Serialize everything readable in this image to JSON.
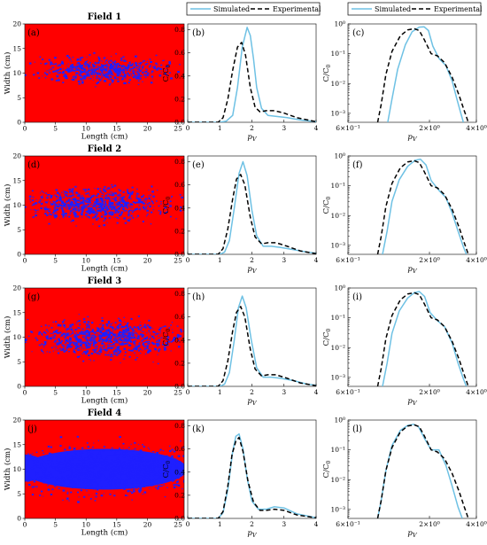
{
  "colors": {
    "field_bg": "#ff0000",
    "plume": "#1f1fff",
    "simulated": "#6ec1e4",
    "experimental": "#000000"
  },
  "legend": {
    "simulated": "Simulated",
    "experimental": "Experimental"
  },
  "chart_data": [
    {
      "type": "heatmap",
      "row": 0,
      "col": 0,
      "panel_label": "(a)",
      "title": "Field 1",
      "xlabel": "Length (cm)",
      "ylabel": "Width (cm)",
      "xlim": [
        0,
        26
      ],
      "ylim": [
        0,
        20
      ],
      "xticks": [
        0,
        5,
        10,
        15,
        20,
        25
      ],
      "yticks": [
        0,
        5,
        10,
        15,
        20
      ],
      "plume": {
        "center": [
          12.5,
          10.8
        ],
        "half_width": [
          8.5,
          2.3
        ],
        "density": 0.35,
        "seed": 11
      },
      "colors": {
        "background": "red",
        "plume": "blue"
      }
    },
    {
      "type": "heatmap",
      "row": 1,
      "col": 0,
      "panel_label": "(d)",
      "title": "Field 2",
      "xlabel": "Length (cm)",
      "ylabel": "Width (cm)",
      "xlim": [
        0,
        26
      ],
      "ylim": [
        0,
        20
      ],
      "xticks": [
        0,
        5,
        10,
        15,
        20,
        25
      ],
      "yticks": [
        0,
        5,
        10,
        15,
        20
      ],
      "plume": {
        "center": [
          12.0,
          10.2
        ],
        "half_width": [
          9.5,
          3.2
        ],
        "density": 0.55,
        "seed": 23
      },
      "colors": {
        "background": "red",
        "plume": "blue"
      }
    },
    {
      "type": "heatmap",
      "row": 2,
      "col": 0,
      "panel_label": "(g)",
      "title": "Field 3",
      "xlabel": "Length (cm)",
      "ylabel": "Width (cm)",
      "xlim": [
        0,
        26
      ],
      "ylim": [
        0,
        20
      ],
      "xticks": [
        0,
        5,
        10,
        15,
        20,
        25
      ],
      "yticks": [
        0,
        5,
        10,
        15,
        20
      ],
      "plume": {
        "center": [
          13.0,
          9.8
        ],
        "half_width": [
          10.5,
          3.6
        ],
        "density": 0.65,
        "seed": 37
      },
      "colors": {
        "background": "red",
        "plume": "blue"
      }
    },
    {
      "type": "heatmap",
      "row": 3,
      "col": 0,
      "panel_label": "(j)",
      "title": "Field 4",
      "xlabel": "Length (cm)",
      "ylabel": "Width (cm)",
      "xlim": [
        0,
        26
      ],
      "ylim": [
        0,
        20
      ],
      "xticks": [
        0,
        5,
        10,
        15,
        20,
        25
      ],
      "yticks": [
        0,
        5,
        10,
        15,
        20
      ],
      "plume": {
        "center": [
          13.0,
          10.0
        ],
        "half_width": [
          14.5,
          4.6
        ],
        "density": 1.0,
        "seed": 41
      },
      "colors": {
        "background": "red",
        "plume": "blue"
      }
    },
    {
      "type": "line",
      "row": 0,
      "col": 1,
      "panel_label": "(b)",
      "xlabel": "p_V",
      "ylabel": "C/C0",
      "xlim": [
        0,
        4
      ],
      "ylim": [
        0,
        0.85
      ],
      "yscale": "linear",
      "xticks": [
        0,
        1,
        2,
        3,
        4
      ],
      "xtick_labels": [
        "0",
        "1",
        "2",
        "3",
        "4"
      ],
      "yticks": [
        0,
        0.2,
        0.4,
        0.6,
        0.8
      ],
      "ytick_labels": [
        "0.0",
        "0.2",
        "0.4",
        "0.6",
        "0.8"
      ],
      "legend": "top",
      "series": [
        {
          "name": "Simulated",
          "x": [
            0,
            1.0,
            1.2,
            1.4,
            1.55,
            1.7,
            1.85,
            1.95,
            2.05,
            2.15,
            2.3,
            2.5,
            2.8,
            3.1,
            3.5,
            4.0
          ],
          "y": [
            0,
            0,
            0.01,
            0.06,
            0.3,
            0.65,
            0.82,
            0.75,
            0.55,
            0.3,
            0.12,
            0.06,
            0.05,
            0.04,
            0.02,
            0.005
          ]
        },
        {
          "name": "Experimental",
          "x": [
            0,
            0.95,
            1.1,
            1.25,
            1.4,
            1.55,
            1.68,
            1.8,
            1.95,
            2.1,
            2.25,
            2.45,
            2.7,
            3.0,
            3.4,
            4.0
          ],
          "y": [
            0,
            0,
            0.04,
            0.2,
            0.45,
            0.65,
            0.69,
            0.58,
            0.3,
            0.13,
            0.09,
            0.1,
            0.1,
            0.08,
            0.04,
            0.005
          ]
        }
      ]
    },
    {
      "type": "line",
      "row": 1,
      "col": 1,
      "panel_label": "(e)",
      "xlabel": "p_V",
      "ylabel": "C/C0",
      "xlim": [
        0,
        4
      ],
      "ylim": [
        0,
        0.85
      ],
      "yscale": "linear",
      "xticks": [
        0,
        1,
        2,
        3,
        4
      ],
      "xtick_labels": [
        "0",
        "1",
        "2",
        "3",
        "4"
      ],
      "yticks": [
        0,
        0.2,
        0.4,
        0.6,
        0.8
      ],
      "ytick_labels": [
        "0.0",
        "0.2",
        "0.4",
        "0.6",
        "0.8"
      ],
      "series": [
        {
          "name": "Simulated",
          "x": [
            0,
            1.0,
            1.15,
            1.3,
            1.45,
            1.6,
            1.72,
            1.85,
            2.0,
            2.15,
            2.35,
            2.6,
            2.9,
            3.3,
            3.7,
            4.0
          ],
          "y": [
            0,
            0,
            0.02,
            0.12,
            0.4,
            0.7,
            0.8,
            0.68,
            0.38,
            0.16,
            0.07,
            0.07,
            0.06,
            0.04,
            0.02,
            0.01
          ]
        },
        {
          "name": "Experimental",
          "x": [
            0,
            0.95,
            1.1,
            1.25,
            1.4,
            1.52,
            1.65,
            1.78,
            1.95,
            2.1,
            2.3,
            2.5,
            2.75,
            3.1,
            3.5,
            4.0
          ],
          "y": [
            0,
            0,
            0.05,
            0.22,
            0.48,
            0.65,
            0.69,
            0.6,
            0.32,
            0.15,
            0.09,
            0.1,
            0.1,
            0.07,
            0.03,
            0.005
          ]
        }
      ]
    },
    {
      "type": "line",
      "row": 2,
      "col": 1,
      "panel_label": "(h)",
      "xlabel": "p_V",
      "ylabel": "C/C0",
      "xlim": [
        0,
        4
      ],
      "ylim": [
        0,
        0.85
      ],
      "yscale": "linear",
      "xticks": [
        0,
        1,
        2,
        3,
        4
      ],
      "xtick_labels": [
        "0",
        "1",
        "2",
        "3",
        "4"
      ],
      "yticks": [
        0,
        0.2,
        0.4,
        0.6,
        0.8
      ],
      "ytick_labels": [
        "0.0",
        "0.2",
        "0.4",
        "0.6",
        "0.8"
      ],
      "series": [
        {
          "name": "Simulated",
          "x": [
            0,
            1.0,
            1.15,
            1.3,
            1.45,
            1.58,
            1.7,
            1.82,
            1.98,
            2.15,
            2.35,
            2.6,
            2.9,
            3.3,
            3.7,
            4.0
          ],
          "y": [
            0,
            0,
            0.02,
            0.12,
            0.4,
            0.68,
            0.78,
            0.68,
            0.4,
            0.16,
            0.08,
            0.08,
            0.07,
            0.05,
            0.02,
            0.01
          ]
        },
        {
          "name": "Experimental",
          "x": [
            0,
            0.95,
            1.1,
            1.25,
            1.4,
            1.52,
            1.65,
            1.78,
            1.95,
            2.1,
            2.3,
            2.5,
            2.75,
            3.1,
            3.5,
            4.0
          ],
          "y": [
            0,
            0,
            0.05,
            0.22,
            0.48,
            0.64,
            0.69,
            0.6,
            0.32,
            0.15,
            0.09,
            0.1,
            0.1,
            0.07,
            0.03,
            0.005
          ]
        }
      ]
    },
    {
      "type": "line",
      "row": 3,
      "col": 1,
      "panel_label": "(k)",
      "xlabel": "p_V",
      "ylabel": "C/C0",
      "xlim": [
        0,
        4
      ],
      "ylim": [
        0,
        0.85
      ],
      "yscale": "linear",
      "xticks": [
        0,
        1,
        2,
        3,
        4
      ],
      "xtick_labels": [
        "0",
        "1",
        "2",
        "3",
        "4"
      ],
      "yticks": [
        0,
        0.2,
        0.4,
        0.6,
        0.8
      ],
      "ytick_labels": [
        "0.0",
        "0.2",
        "0.4",
        "0.6",
        "0.8"
      ],
      "series": [
        {
          "name": "Simulated",
          "x": [
            0,
            0.95,
            1.1,
            1.25,
            1.4,
            1.5,
            1.6,
            1.72,
            1.85,
            2.0,
            2.2,
            2.45,
            2.7,
            3.0,
            3.4,
            4.0
          ],
          "y": [
            0,
            0,
            0.05,
            0.25,
            0.58,
            0.71,
            0.73,
            0.6,
            0.35,
            0.15,
            0.08,
            0.08,
            0.1,
            0.09,
            0.04,
            0.005
          ]
        },
        {
          "name": "Experimental",
          "x": [
            0,
            0.95,
            1.1,
            1.25,
            1.38,
            1.5,
            1.6,
            1.72,
            1.88,
            2.05,
            2.25,
            2.45,
            2.7,
            3.0,
            3.4,
            4.0
          ],
          "y": [
            0,
            0,
            0.06,
            0.28,
            0.55,
            0.67,
            0.7,
            0.58,
            0.32,
            0.14,
            0.07,
            0.07,
            0.08,
            0.07,
            0.03,
            0.005
          ]
        }
      ]
    },
    {
      "type": "line",
      "row": 0,
      "col": 2,
      "panel_label": "(c)",
      "xlabel": "p_V",
      "ylabel": "C/C0",
      "xlim": [
        0.6,
        4
      ],
      "ylim": [
        0.0005,
        1
      ],
      "xscale": "log",
      "yscale": "log",
      "xticks": [
        0.6,
        2,
        4
      ],
      "xtick_labels": [
        "6×10⁻¹",
        "2×10⁰",
        "4×10⁰"
      ],
      "yticks": [
        0.001,
        0.01,
        0.1,
        1
      ],
      "ytick_labels": [
        "10⁻³",
        "10⁻²",
        "10⁻¹",
        "10⁰"
      ],
      "legend": "top",
      "series": [
        {
          "name": "Simulated",
          "x": [
            1.08,
            1.15,
            1.25,
            1.4,
            1.55,
            1.72,
            1.85,
            1.97,
            2.1,
            2.3,
            2.55,
            2.8,
            3.0,
            3.15,
            3.3
          ],
          "y": [
            0.0005,
            0.003,
            0.03,
            0.2,
            0.55,
            0.78,
            0.8,
            0.6,
            0.18,
            0.07,
            0.04,
            0.012,
            0.003,
            0.0012,
            0.0005
          ]
        },
        {
          "name": "Experimental",
          "x": [
            0.93,
            0.98,
            1.05,
            1.15,
            1.3,
            1.45,
            1.6,
            1.72,
            1.85,
            2.05,
            2.25,
            2.5,
            2.8,
            3.1,
            3.35,
            3.55
          ],
          "y": [
            0.0005,
            0.002,
            0.02,
            0.12,
            0.4,
            0.63,
            0.69,
            0.6,
            0.3,
            0.1,
            0.085,
            0.05,
            0.016,
            0.004,
            0.0012,
            0.0005
          ]
        }
      ]
    },
    {
      "type": "line",
      "row": 1,
      "col": 2,
      "panel_label": "(f)",
      "xlabel": "p_V",
      "ylabel": "C/C0",
      "xlim": [
        0.6,
        4
      ],
      "ylim": [
        0.0005,
        1
      ],
      "xscale": "log",
      "yscale": "log",
      "xticks": [
        0.6,
        2,
        4
      ],
      "xtick_labels": [
        "6×10⁻¹",
        "2×10⁰",
        "4×10⁰"
      ],
      "yticks": [
        0.001,
        0.01,
        0.1,
        1
      ],
      "ytick_labels": [
        "10⁻³",
        "10⁻²",
        "10⁻¹",
        "10⁰"
      ],
      "series": [
        {
          "name": "Simulated",
          "x": [
            1.0,
            1.07,
            1.15,
            1.28,
            1.45,
            1.62,
            1.75,
            1.9,
            2.05,
            2.3,
            2.55,
            2.8,
            3.05,
            3.3,
            3.45
          ],
          "y": [
            0.0005,
            0.003,
            0.03,
            0.16,
            0.45,
            0.72,
            0.78,
            0.5,
            0.15,
            0.07,
            0.04,
            0.012,
            0.003,
            0.0009,
            0.0005
          ]
        },
        {
          "name": "Experimental",
          "x": [
            0.93,
            0.98,
            1.05,
            1.15,
            1.3,
            1.45,
            1.6,
            1.72,
            1.85,
            2.05,
            2.25,
            2.5,
            2.8,
            3.1,
            3.35,
            3.55
          ],
          "y": [
            0.0005,
            0.002,
            0.02,
            0.12,
            0.4,
            0.63,
            0.69,
            0.6,
            0.3,
            0.1,
            0.085,
            0.05,
            0.016,
            0.004,
            0.0012,
            0.0005
          ]
        }
      ]
    },
    {
      "type": "line",
      "row": 2,
      "col": 2,
      "panel_label": "(i)",
      "xlabel": "p_V",
      "ylabel": "C/C0",
      "xlim": [
        0.6,
        4
      ],
      "ylim": [
        0.0005,
        1
      ],
      "xscale": "log",
      "yscale": "log",
      "xticks": [
        0.6,
        2,
        4
      ],
      "xtick_labels": [
        "6×10⁻¹",
        "2×10⁰",
        "4×10⁰"
      ],
      "yticks": [
        0.001,
        0.01,
        0.1,
        1
      ],
      "ytick_labels": [
        "10⁻³",
        "10⁻²",
        "10⁻¹",
        "10⁰"
      ],
      "series": [
        {
          "name": "Simulated",
          "x": [
            1.0,
            1.07,
            1.15,
            1.28,
            1.45,
            1.6,
            1.72,
            1.86,
            2.02,
            2.25,
            2.5,
            2.8,
            3.05,
            3.3,
            3.45
          ],
          "y": [
            0.0005,
            0.003,
            0.03,
            0.17,
            0.46,
            0.7,
            0.76,
            0.52,
            0.15,
            0.08,
            0.05,
            0.014,
            0.003,
            0.0009,
            0.0005
          ]
        },
        {
          "name": "Experimental",
          "x": [
            0.93,
            0.98,
            1.05,
            1.15,
            1.3,
            1.45,
            1.6,
            1.72,
            1.85,
            2.05,
            2.25,
            2.5,
            2.8,
            3.1,
            3.35,
            3.55
          ],
          "y": [
            0.0005,
            0.002,
            0.02,
            0.12,
            0.4,
            0.63,
            0.69,
            0.6,
            0.3,
            0.1,
            0.085,
            0.05,
            0.016,
            0.004,
            0.0012,
            0.0005
          ]
        }
      ]
    },
    {
      "type": "line",
      "row": 3,
      "col": 2,
      "panel_label": "(l)",
      "xlabel": "p_V",
      "ylabel": "C/C0",
      "xlim": [
        0.6,
        4
      ],
      "ylim": [
        0.0005,
        1
      ],
      "xscale": "log",
      "yscale": "log",
      "xticks": [
        0.6,
        2,
        4
      ],
      "xtick_labels": [
        "6×10⁻¹",
        "2×10⁰",
        "4×10⁰"
      ],
      "yticks": [
        0.001,
        0.01,
        0.1,
        1
      ],
      "ytick_labels": [
        "10⁻³",
        "10⁻²",
        "10⁻¹",
        "10⁰"
      ],
      "series": [
        {
          "name": "Simulated",
          "x": [
            0.93,
            0.98,
            1.05,
            1.15,
            1.3,
            1.45,
            1.58,
            1.7,
            1.85,
            2.05,
            2.3,
            2.55,
            2.8,
            3.05,
            3.25
          ],
          "y": [
            0.0005,
            0.002,
            0.02,
            0.14,
            0.45,
            0.66,
            0.72,
            0.6,
            0.25,
            0.1,
            0.1,
            0.03,
            0.006,
            0.0012,
            0.0005
          ]
        },
        {
          "name": "Experimental",
          "x": [
            0.93,
            0.98,
            1.05,
            1.15,
            1.3,
            1.45,
            1.6,
            1.72,
            1.85,
            2.05,
            2.25,
            2.5,
            2.8,
            3.1,
            3.35,
            3.55
          ],
          "y": [
            0.0005,
            0.002,
            0.02,
            0.12,
            0.4,
            0.63,
            0.69,
            0.6,
            0.3,
            0.1,
            0.085,
            0.05,
            0.016,
            0.004,
            0.0012,
            0.0005
          ]
        }
      ]
    }
  ]
}
